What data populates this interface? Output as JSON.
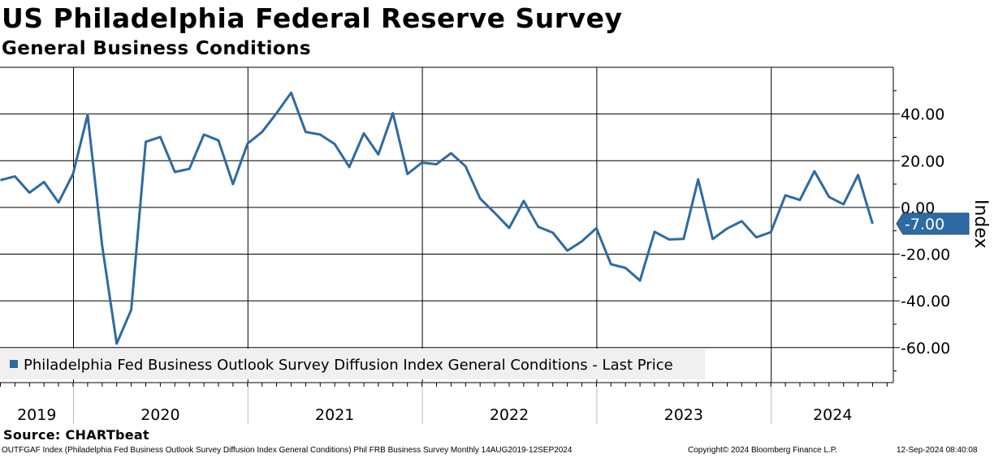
{
  "header": {
    "title": "US Philadelphia Federal Reserve Survey",
    "subtitle": "General Business Conditions"
  },
  "source": "Source: CHARTbeat",
  "footer": {
    "left": "OUTFGAF Index (Philadelphia Fed Business Outlook Survey Diffusion Index General Conditions) Phil FRB Business Survey  Monthly 14AUG2019-12SEP2024",
    "middle": "Copyright© 2024 Bloomberg Finance L.P.",
    "right": "12-Sep-2024 08:40:08"
  },
  "colors": {
    "series": "#2e6aa3",
    "last_price_tag": "#2e6aa3",
    "legend_background": "#f0f0f0",
    "grid": "#000000"
  },
  "chart_data": {
    "type": "line",
    "ylabel": "Index",
    "ylim": [
      -75,
      60
    ],
    "y_ticks": [
      40,
      20,
      0,
      -20,
      -40,
      -60
    ],
    "y_tick_labels": [
      "40.00",
      "20.00",
      "0.00",
      "-20.00",
      "-40.00",
      "-60.00"
    ],
    "grid": true,
    "legend_position": "bottom-left",
    "x_years": [
      "2019",
      "2020",
      "2021",
      "2022",
      "2023",
      "2024"
    ],
    "x_start": "2019-08",
    "x_end": "2024-09",
    "last_value": -7.0,
    "last_value_label": "-7.00",
    "series": [
      {
        "name": "Philadelphia Fed Business Outlook Survey Diffusion Index General Conditions - Last Price",
        "x": [
          "2019-08",
          "2019-09",
          "2019-10",
          "2019-11",
          "2019-12",
          "2020-01",
          "2020-02",
          "2020-03",
          "2020-04",
          "2020-05",
          "2020-06",
          "2020-07",
          "2020-08",
          "2020-09",
          "2020-10",
          "2020-11",
          "2020-12",
          "2021-01",
          "2021-02",
          "2021-03",
          "2021-04",
          "2021-05",
          "2021-06",
          "2021-07",
          "2021-08",
          "2021-09",
          "2021-10",
          "2021-11",
          "2021-12",
          "2022-01",
          "2022-02",
          "2022-03",
          "2022-04",
          "2022-05",
          "2022-06",
          "2022-07",
          "2022-08",
          "2022-09",
          "2022-10",
          "2022-11",
          "2022-12",
          "2023-01",
          "2023-02",
          "2023-03",
          "2023-04",
          "2023-05",
          "2023-06",
          "2023-07",
          "2023-08",
          "2023-09",
          "2023-10",
          "2023-11",
          "2023-12",
          "2024-01",
          "2024-02",
          "2024-03",
          "2024-04",
          "2024-05",
          "2024-06",
          "2024-07",
          "2024-08",
          "2024-09"
        ],
        "values": [
          11.7,
          13.3,
          6.3,
          10.9,
          2.1,
          14.4,
          39.7,
          -16.4,
          -58.3,
          -43.8,
          28.1,
          30.2,
          15.2,
          16.5,
          31.2,
          28.7,
          10.0,
          27.3,
          32.3,
          40.4,
          49.1,
          32.3,
          31.2,
          27.1,
          17.3,
          31.7,
          22.7,
          40.4,
          14.3,
          19.2,
          18.5,
          23.2,
          17.6,
          3.8,
          -2.3,
          -8.8,
          2.8,
          -8.3,
          -10.8,
          -18.5,
          -14.5,
          -8.9,
          -24.3,
          -25.9,
          -31.3,
          -10.4,
          -13.7,
          -13.5,
          12.0,
          -13.5,
          -9.0,
          -5.9,
          -12.8,
          -10.6,
          5.2,
          3.2,
          15.5,
          4.5,
          1.3,
          13.9,
          -7.0,
          -7.0
        ]
      }
    ]
  }
}
